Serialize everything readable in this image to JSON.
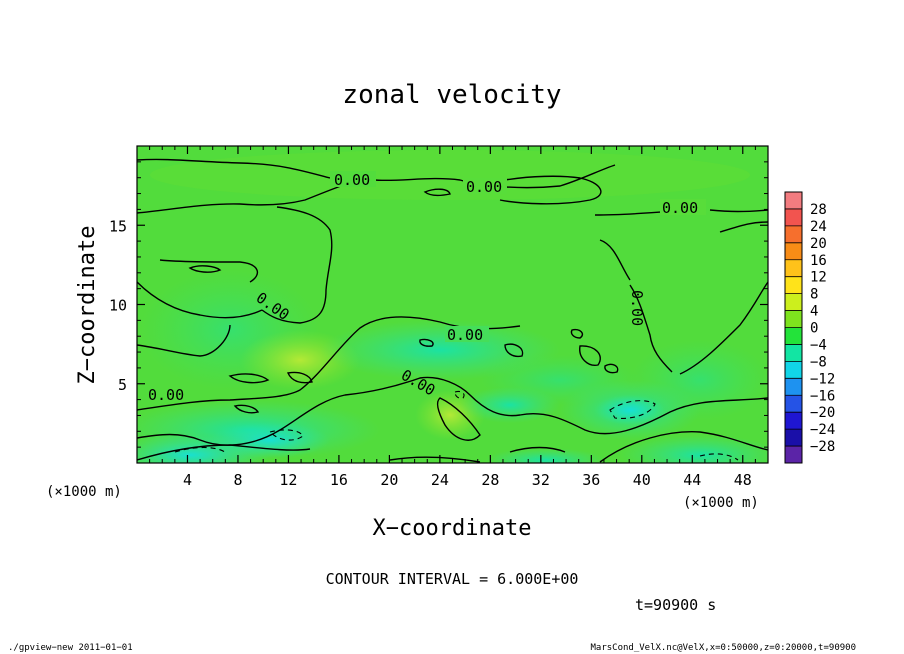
{
  "chart_data": {
    "type": "heatmap",
    "title": "zonal velocity",
    "xlabel": "X−coordinate",
    "ylabel": "Z−coordinate",
    "xunit": "(×1000 m)",
    "yunit": "(×1000 m)",
    "xlim": [
      0,
      50
    ],
    "ylim": [
      0,
      20
    ],
    "xticks": [
      4,
      8,
      12,
      16,
      20,
      24,
      28,
      32,
      36,
      40,
      44,
      48
    ],
    "yticks": [
      5,
      10,
      15
    ],
    "color_levels": [
      28,
      24,
      20,
      16,
      12,
      8,
      4,
      0,
      -4,
      -8,
      -12,
      -16,
      -20,
      -24,
      -28
    ],
    "color_scale": [
      "#f37c80",
      "#f2544f",
      "#f66f2d",
      "#f88c16",
      "#ffc21a",
      "#ffe31a",
      "#ccef1d",
      "#7ee31e",
      "#23e33a",
      "#12e5a3",
      "#11d5e8",
      "#1e92f0",
      "#2553e6",
      "#1f16d2",
      "#1a0fa8",
      "#5b24a7"
    ],
    "contour_labels": [
      "0.00",
      "0.00",
      "0.00",
      "0.00",
      "0.00",
      "0.00",
      "0.00",
      "0.00"
    ],
    "contour_interval_text": "CONTOUR INTERVAL = 6.000E+00",
    "time_text": "t=90900 s",
    "grid": false,
    "legend": "right colorbar"
  },
  "footer": {
    "left": "./gpview−new  2011−01−01",
    "right": "MarsCond_VelX.nc@VelX,x=0:50000,z=0:20000,t=90900"
  }
}
